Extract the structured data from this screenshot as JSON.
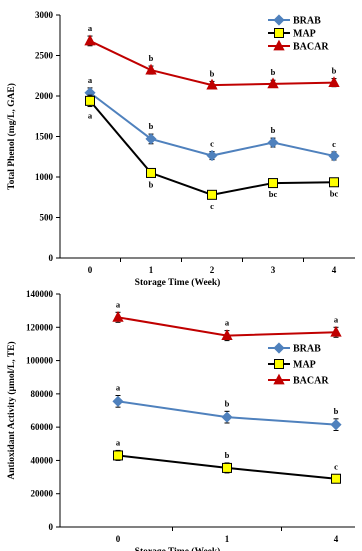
{
  "chart_data": [
    {
      "type": "line",
      "xlabel": "Storage Time (Week)",
      "ylabel": "Total Phenol (mg/L, GAE)",
      "categories": [
        "0",
        "1",
        "2",
        "3",
        "4"
      ],
      "ylim": [
        0,
        3000
      ],
      "yticks": [
        "0",
        "500",
        "1000",
        "1500",
        "2000",
        "2500",
        "3000"
      ],
      "legend_position": "top-right",
      "series": [
        {
          "name": "BRAB",
          "color": "#4F81BD",
          "marker": "diamond",
          "values": [
            2040,
            1470,
            1265,
            1425,
            1260
          ],
          "errors": [
            60,
            60,
            50,
            55,
            50
          ],
          "labels": [
            "a",
            "b",
            "c",
            "b",
            "c"
          ],
          "label_side": "above"
        },
        {
          "name": "MAP",
          "color": "#000000",
          "marker": "square",
          "values": [
            1940,
            1050,
            780,
            925,
            935
          ],
          "errors": [
            70,
            30,
            25,
            25,
            25
          ],
          "labels": [
            "a",
            "b",
            "c",
            "bc",
            "bc"
          ],
          "label_side": "below"
        },
        {
          "name": "BACAR",
          "color": "#C00000",
          "marker": "triangle",
          "values": [
            2680,
            2320,
            2135,
            2150,
            2165
          ],
          "errors": [
            60,
            50,
            45,
            45,
            50
          ],
          "labels": [
            "a",
            "b",
            "b",
            "b",
            "b"
          ],
          "label_side": "above"
        }
      ]
    },
    {
      "type": "line",
      "xlabel": "Storage Time (Week)",
      "ylabel": "Antioxidant Activity (µmol/L, TE)",
      "categories": [
        "0",
        "1",
        "4"
      ],
      "ylim": [
        0,
        140000
      ],
      "yticks": [
        "0",
        "20000",
        "40000",
        "60000",
        "80000",
        "100000",
        "120000",
        "140000"
      ],
      "legend_position": "right",
      "series": [
        {
          "name": "BRAB",
          "color": "#4F81BD",
          "marker": "diamond",
          "values": [
            75500,
            66000,
            61500
          ],
          "errors": [
            3500,
            3500,
            3500
          ],
          "labels": [
            "a",
            "b",
            "b"
          ],
          "label_side": "above"
        },
        {
          "name": "MAP",
          "color": "#000000",
          "marker": "square",
          "values": [
            43000,
            35500,
            29000
          ],
          "errors": [
            3000,
            3000,
            2500
          ],
          "labels": [
            "a",
            "b",
            "c"
          ],
          "label_side": "above"
        },
        {
          "name": "BACAR",
          "color": "#C00000",
          "marker": "triangle",
          "values": [
            126000,
            115000,
            117000
          ],
          "errors": [
            3000,
            3000,
            3000
          ],
          "labels": [
            "a",
            "a",
            "a"
          ],
          "label_side": "above"
        }
      ]
    }
  ]
}
